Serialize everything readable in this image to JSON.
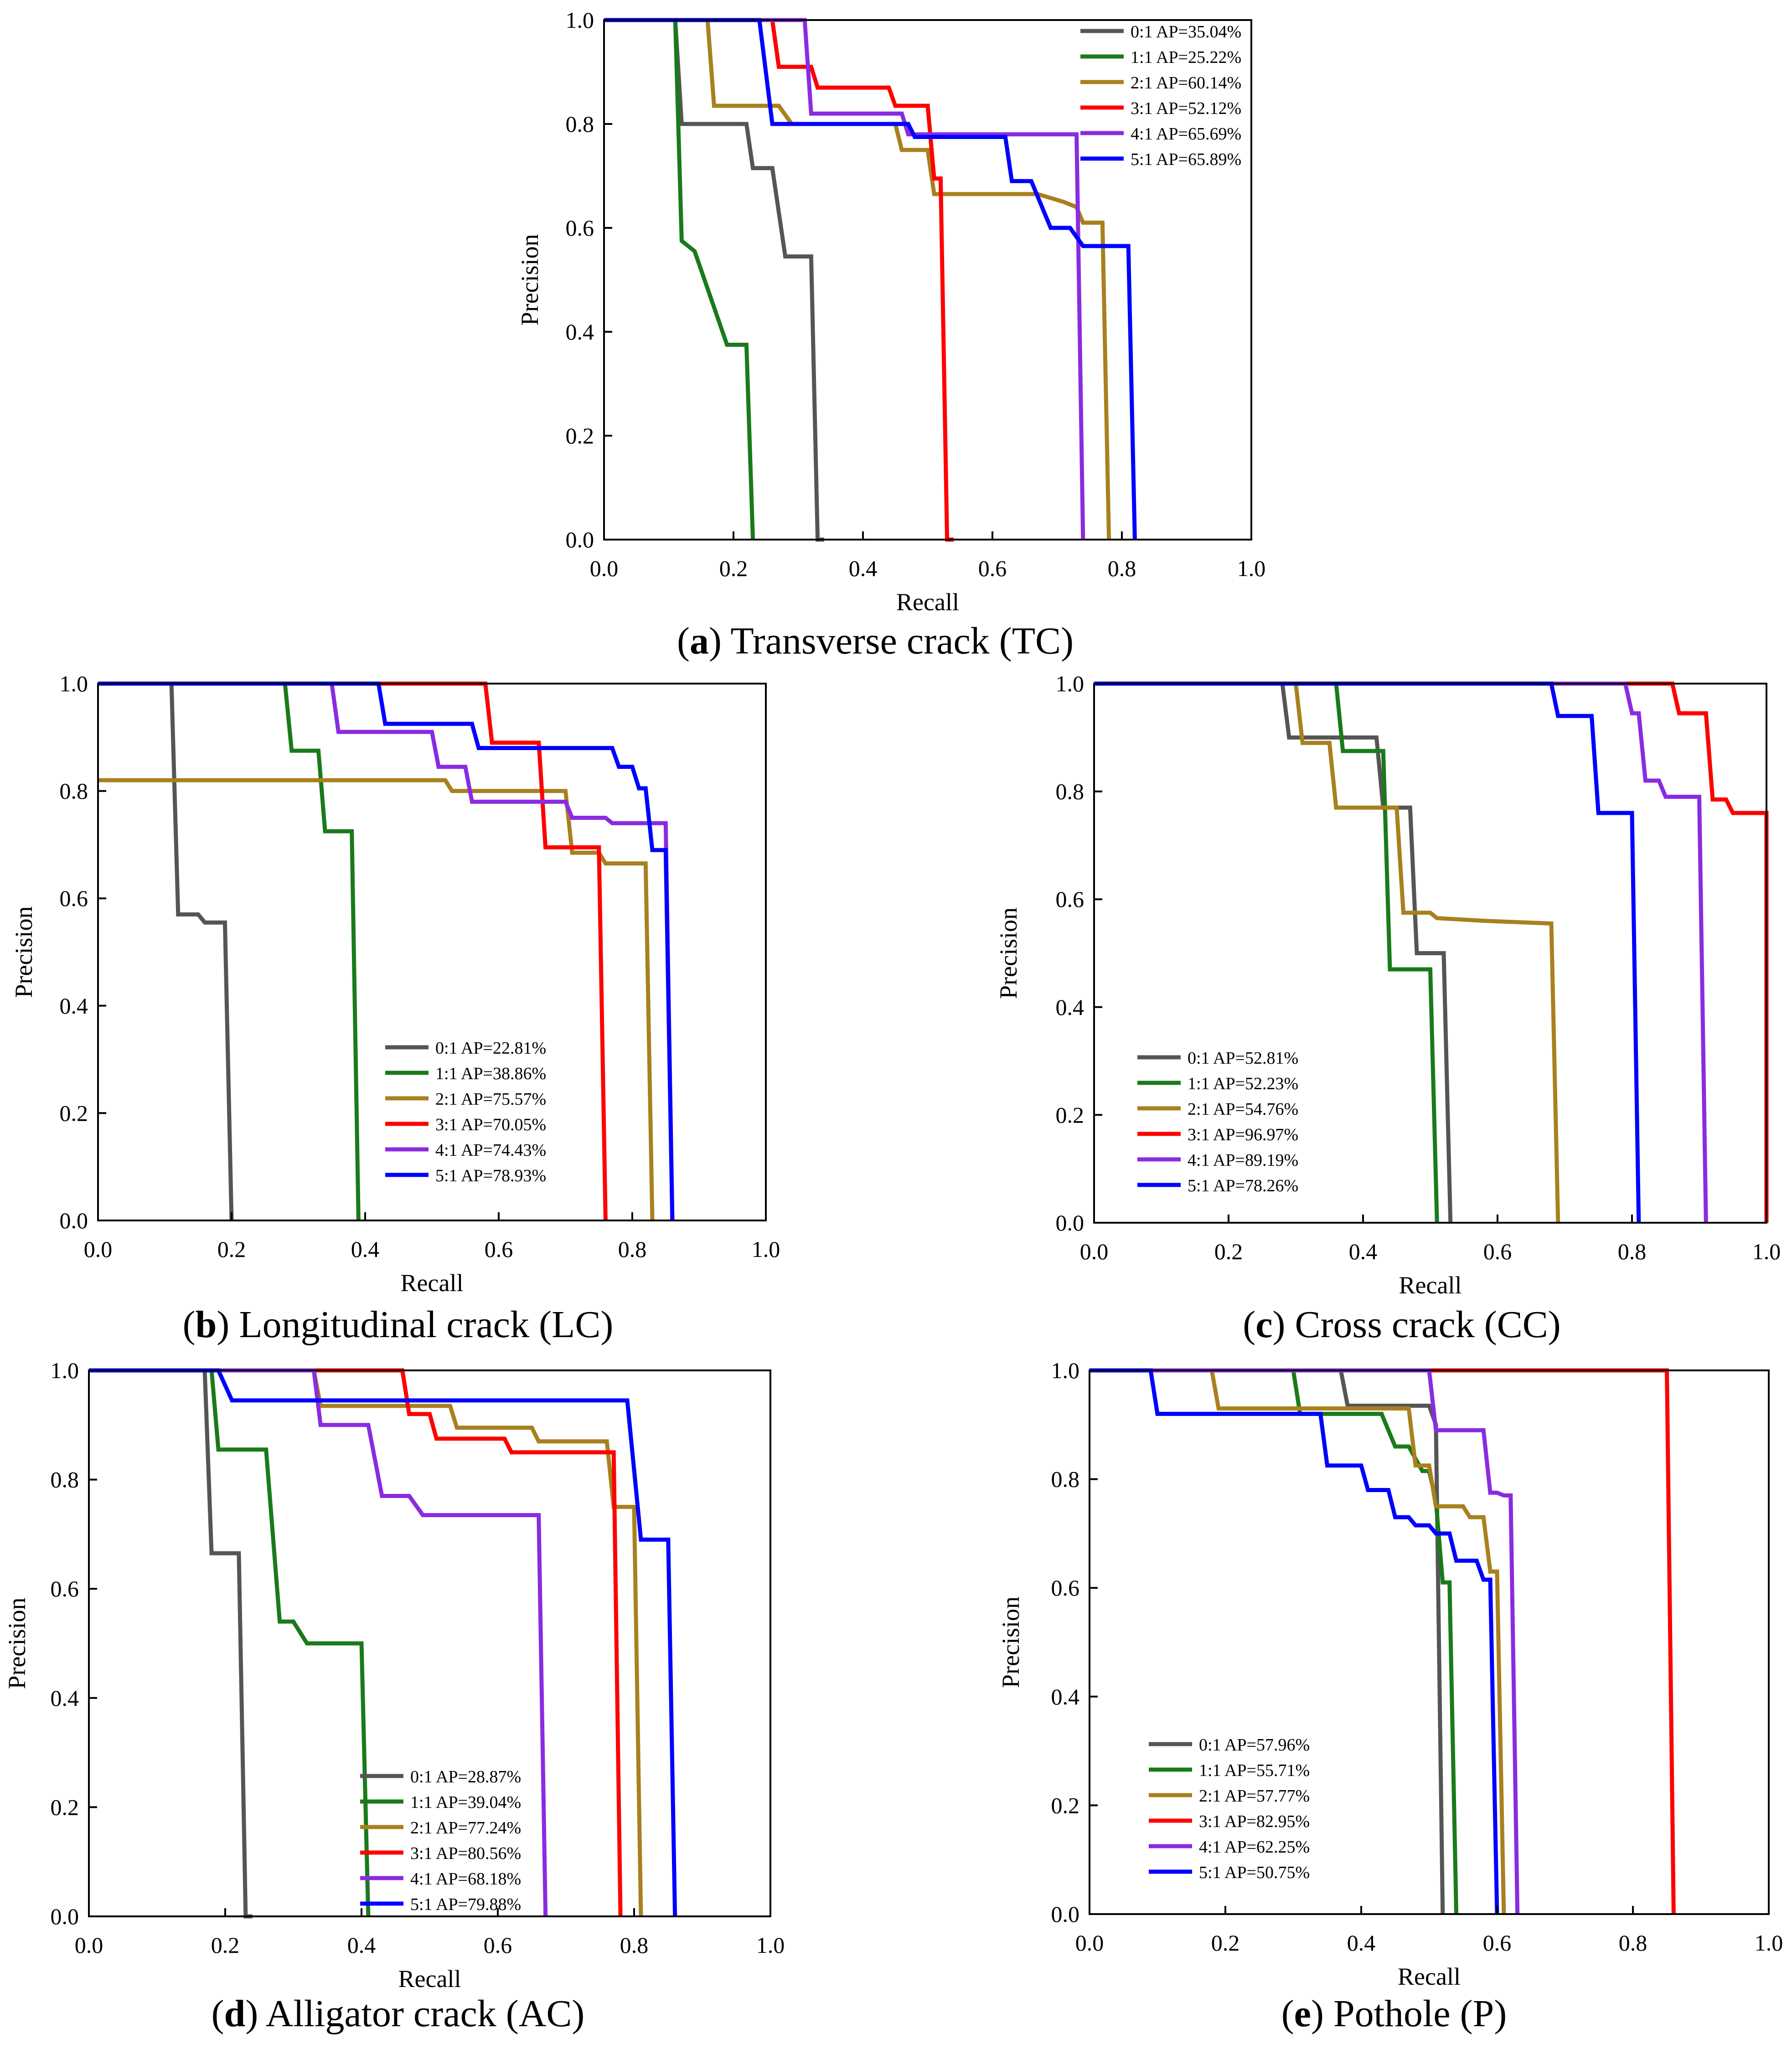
{
  "figure": {
    "series_colors": [
      "#555555",
      "#1a7a1a",
      "#a8801e",
      "#ff0000",
      "#8a2be2",
      "#0000ff"
    ],
    "x_axis_label": "Recall",
    "y_axis_label": "Precision"
  },
  "chart_data": [
    {
      "id": "a",
      "type": "line",
      "caption_letter": "a",
      "caption_text": " Transverse crack (TC)",
      "xlabel": "Recall",
      "ylabel": "Precision",
      "xlim": [
        0,
        1
      ],
      "ylim": [
        0,
        1
      ],
      "xticks": [
        "0.0",
        "0.2",
        "0.4",
        "0.6",
        "0.8",
        "1.0"
      ],
      "yticks": [
        "0.0",
        "0.2",
        "0.4",
        "0.6",
        "0.8",
        "1.0"
      ],
      "legend": "top-right",
      "series": [
        {
          "name": "0:1 AP=35.04%",
          "x": [
            0.0,
            0.11,
            0.12,
            0.22,
            0.23,
            0.26,
            0.28,
            0.32,
            0.33,
            0.34
          ],
          "y": [
            1.0,
            1.0,
            0.8,
            0.8,
            0.715,
            0.715,
            0.545,
            0.545,
            0.0,
            0.0
          ]
        },
        {
          "name": "1:1 AP=25.22%",
          "x": [
            0.0,
            0.11,
            0.12,
            0.14,
            0.19,
            0.22,
            0.23
          ],
          "y": [
            1.0,
            1.0,
            0.575,
            0.555,
            0.375,
            0.375,
            0.0
          ]
        },
        {
          "name": "2:1 AP=60.14%",
          "x": [
            0.0,
            0.16,
            0.17,
            0.27,
            0.29,
            0.45,
            0.46,
            0.5,
            0.51,
            0.67,
            0.71,
            0.73,
            0.74,
            0.77,
            0.78
          ],
          "y": [
            1.0,
            1.0,
            0.835,
            0.835,
            0.8,
            0.8,
            0.75,
            0.75,
            0.665,
            0.665,
            0.65,
            0.64,
            0.61,
            0.61,
            0.0
          ]
        },
        {
          "name": "3:1 AP=52.12%",
          "x": [
            0.0,
            0.26,
            0.27,
            0.32,
            0.33,
            0.44,
            0.45,
            0.5,
            0.51,
            0.52,
            0.53,
            0.54
          ],
          "y": [
            1.0,
            1.0,
            0.91,
            0.91,
            0.87,
            0.87,
            0.835,
            0.835,
            0.695,
            0.695,
            0.0,
            0.0
          ]
        },
        {
          "name": "4:1 AP=65.69%",
          "x": [
            0.0,
            0.31,
            0.32,
            0.46,
            0.47,
            0.73,
            0.74
          ],
          "y": [
            1.0,
            1.0,
            0.82,
            0.82,
            0.78,
            0.78,
            0.0
          ]
        },
        {
          "name": "5:1 AP=65.89%",
          "x": [
            0.0,
            0.24,
            0.26,
            0.47,
            0.48,
            0.62,
            0.63,
            0.66,
            0.69,
            0.72,
            0.74,
            0.81,
            0.82
          ],
          "y": [
            1.0,
            1.0,
            0.8,
            0.8,
            0.775,
            0.775,
            0.69,
            0.69,
            0.6,
            0.6,
            0.565,
            0.565,
            0.0
          ]
        }
      ]
    },
    {
      "id": "b",
      "type": "line",
      "caption_letter": "b",
      "caption_text": " Longitudinal crack (LC)",
      "xlabel": "Recall",
      "ylabel": "Precision",
      "xlim": [
        0,
        1
      ],
      "ylim": [
        0,
        1
      ],
      "xticks": [
        "0.0",
        "0.2",
        "0.4",
        "0.6",
        "0.8",
        "1.0"
      ],
      "yticks": [
        "0.0",
        "0.2",
        "0.4",
        "0.6",
        "0.8",
        "1.0"
      ],
      "legend": "bottom-center",
      "series": [
        {
          "name": "0:1 AP=22.81%",
          "x": [
            0.0,
            0.11,
            0.12,
            0.15,
            0.16,
            0.19,
            0.2
          ],
          "y": [
            1.0,
            1.0,
            0.57,
            0.57,
            0.555,
            0.555,
            0.0
          ]
        },
        {
          "name": "1:1 AP=38.86%",
          "x": [
            0.0,
            0.28,
            0.29,
            0.33,
            0.34,
            0.38,
            0.39
          ],
          "y": [
            1.0,
            1.0,
            0.875,
            0.875,
            0.725,
            0.725,
            0.0
          ]
        },
        {
          "name": "2:1 AP=75.57%",
          "x": [
            0.0,
            0.52,
            0.53,
            0.7,
            0.71,
            0.75,
            0.76,
            0.82,
            0.83
          ],
          "y": [
            0.82,
            0.82,
            0.8,
            0.8,
            0.685,
            0.685,
            0.665,
            0.665,
            0.0
          ]
        },
        {
          "name": "3:1 AP=70.05%",
          "x": [
            0.0,
            0.58,
            0.59,
            0.66,
            0.67,
            0.75,
            0.76
          ],
          "y": [
            1.0,
            1.0,
            0.89,
            0.89,
            0.695,
            0.695,
            0.0
          ]
        },
        {
          "name": "4:1 AP=74.43%",
          "x": [
            0.0,
            0.35,
            0.36,
            0.5,
            0.51,
            0.55,
            0.56,
            0.7,
            0.71,
            0.76,
            0.77,
            0.85,
            0.86
          ],
          "y": [
            1.0,
            1.0,
            0.91,
            0.91,
            0.845,
            0.845,
            0.78,
            0.78,
            0.75,
            0.75,
            0.74,
            0.74,
            0.0
          ]
        },
        {
          "name": "5:1 AP=78.93%",
          "x": [
            0.0,
            0.42,
            0.43,
            0.56,
            0.57,
            0.77,
            0.78,
            0.8,
            0.81,
            0.82,
            0.83,
            0.85,
            0.86
          ],
          "y": [
            1.0,
            1.0,
            0.925,
            0.925,
            0.88,
            0.88,
            0.845,
            0.845,
            0.805,
            0.805,
            0.69,
            0.69,
            0.0
          ]
        }
      ]
    },
    {
      "id": "c",
      "type": "line",
      "caption_letter": "c",
      "caption_text": " Cross crack (CC)",
      "xlabel": "Recall",
      "ylabel": "Precision",
      "xlim": [
        0,
        1
      ],
      "ylim": [
        0,
        1
      ],
      "xticks": [
        "0.0",
        "0.2",
        "0.4",
        "0.6",
        "0.8",
        "1.0"
      ],
      "yticks": [
        "0.0",
        "0.2",
        "0.4",
        "0.6",
        "0.8",
        "1.0"
      ],
      "legend": "bottom-left",
      "series": [
        {
          "name": "0:1 AP=52.81%",
          "x": [
            0.0,
            0.28,
            0.29,
            0.42,
            0.43,
            0.47,
            0.48,
            0.52,
            0.53
          ],
          "y": [
            1.0,
            1.0,
            0.9,
            0.9,
            0.77,
            0.77,
            0.5,
            0.5,
            0.0
          ]
        },
        {
          "name": "1:1 AP=52.23%",
          "x": [
            0.0,
            0.36,
            0.37,
            0.43,
            0.44,
            0.5,
            0.51
          ],
          "y": [
            1.0,
            1.0,
            0.875,
            0.875,
            0.47,
            0.47,
            0.0
          ]
        },
        {
          "name": "2:1 AP=54.76%",
          "x": [
            0.0,
            0.3,
            0.31,
            0.35,
            0.36,
            0.45,
            0.46,
            0.5,
            0.51,
            0.58,
            0.68,
            0.69
          ],
          "y": [
            1.0,
            1.0,
            0.89,
            0.89,
            0.77,
            0.77,
            0.575,
            0.575,
            0.565,
            0.56,
            0.555,
            0.0
          ]
        },
        {
          "name": "3:1 AP=96.97%",
          "x": [
            0.0,
            0.86,
            0.87,
            0.91,
            0.92,
            0.94,
            0.95,
            1.0,
            1.0
          ],
          "y": [
            1.0,
            1.0,
            0.945,
            0.945,
            0.785,
            0.785,
            0.76,
            0.76,
            0.0
          ]
        },
        {
          "name": "4:1 AP=89.19%",
          "x": [
            0.0,
            0.79,
            0.8,
            0.81,
            0.82,
            0.84,
            0.85,
            0.88,
            0.89,
            0.9,
            0.91
          ],
          "y": [
            1.0,
            1.0,
            0.945,
            0.945,
            0.82,
            0.82,
            0.79,
            0.79,
            0.79,
            0.79,
            0.0
          ]
        },
        {
          "name": "5:1 AP=78.26%",
          "x": [
            0.0,
            0.68,
            0.69,
            0.74,
            0.75,
            0.8,
            0.81
          ],
          "y": [
            1.0,
            1.0,
            0.94,
            0.94,
            0.76,
            0.76,
            0.0
          ]
        }
      ]
    },
    {
      "id": "d",
      "type": "line",
      "caption_letter": "d",
      "caption_text": " Alligator crack (AC)",
      "xlabel": "Recall",
      "ylabel": "Precision",
      "xlim": [
        0,
        1
      ],
      "ylim": [
        0,
        1
      ],
      "xticks": [
        "0.0",
        "0.2",
        "0.4",
        "0.6",
        "0.8",
        "1.0"
      ],
      "yticks": [
        "0.0",
        "0.2",
        "0.4",
        "0.6",
        "0.8",
        "1.0"
      ],
      "legend": "bottom-center",
      "series": [
        {
          "name": "0:1 AP=28.87%",
          "x": [
            0.0,
            0.17,
            0.18,
            0.22,
            0.23,
            0.24
          ],
          "y": [
            1.0,
            1.0,
            0.665,
            0.665,
            0.0,
            0.0
          ]
        },
        {
          "name": "1:1 AP=39.04%",
          "x": [
            0.0,
            0.18,
            0.19,
            0.26,
            0.28,
            0.3,
            0.32,
            0.4,
            0.41
          ],
          "y": [
            1.0,
            1.0,
            0.855,
            0.855,
            0.54,
            0.54,
            0.5,
            0.5,
            0.0
          ]
        },
        {
          "name": "2:1 AP=77.24%",
          "x": [
            0.0,
            0.33,
            0.34,
            0.53,
            0.54,
            0.65,
            0.66,
            0.76,
            0.77,
            0.8,
            0.81
          ],
          "y": [
            1.0,
            1.0,
            0.935,
            0.935,
            0.895,
            0.895,
            0.87,
            0.87,
            0.75,
            0.75,
            0.0
          ]
        },
        {
          "name": "3:1 AP=80.56%",
          "x": [
            0.0,
            0.46,
            0.47,
            0.5,
            0.51,
            0.61,
            0.62,
            0.77,
            0.78
          ],
          "y": [
            1.0,
            1.0,
            0.92,
            0.92,
            0.875,
            0.875,
            0.85,
            0.85,
            0.0
          ]
        },
        {
          "name": "4:1 AP=68.18%",
          "x": [
            0.0,
            0.33,
            0.34,
            0.41,
            0.43,
            0.47,
            0.49,
            0.66,
            0.67
          ],
          "y": [
            1.0,
            1.0,
            0.9,
            0.9,
            0.77,
            0.77,
            0.735,
            0.735,
            0.0
          ]
        },
        {
          "name": "5:1 AP=79.88%",
          "x": [
            0.0,
            0.19,
            0.21,
            0.79,
            0.81,
            0.85,
            0.86
          ],
          "y": [
            1.0,
            1.0,
            0.945,
            0.945,
            0.69,
            0.69,
            0.0
          ]
        }
      ]
    },
    {
      "id": "e",
      "type": "line",
      "caption_letter": "e",
      "caption_text": " Pothole (P)",
      "xlabel": "Recall",
      "ylabel": "Precision",
      "xlim": [
        0,
        1
      ],
      "ylim": [
        0,
        1
      ],
      "xticks": [
        "0.0",
        "0.2",
        "0.4",
        "0.6",
        "0.8",
        "1.0"
      ],
      "yticks": [
        "0.0",
        "0.2",
        "0.4",
        "0.6",
        "0.8",
        "1.0"
      ],
      "legend": "bottom-left",
      "series": [
        {
          "name": "0:1 AP=57.96%",
          "x": [
            0.0,
            0.37,
            0.38,
            0.5,
            0.51,
            0.52
          ],
          "y": [
            1.0,
            1.0,
            0.935,
            0.935,
            0.9,
            0.0
          ]
        },
        {
          "name": "1:1 AP=55.71%",
          "x": [
            0.0,
            0.3,
            0.31,
            0.43,
            0.45,
            0.47,
            0.49,
            0.5,
            0.51,
            0.52,
            0.53,
            0.54
          ],
          "y": [
            1.0,
            1.0,
            0.92,
            0.92,
            0.86,
            0.86,
            0.815,
            0.815,
            0.76,
            0.61,
            0.61,
            0.0
          ]
        },
        {
          "name": "2:1 AP=57.77%",
          "x": [
            0.0,
            0.18,
            0.19,
            0.47,
            0.48,
            0.5,
            0.51,
            0.55,
            0.56,
            0.58,
            0.59,
            0.6,
            0.61
          ],
          "y": [
            1.0,
            1.0,
            0.93,
            0.93,
            0.825,
            0.825,
            0.75,
            0.75,
            0.73,
            0.73,
            0.63,
            0.63,
            0.0
          ]
        },
        {
          "name": "3:1 AP=82.95%",
          "x": [
            0.0,
            0.85,
            0.86
          ],
          "y": [
            1.0,
            1.0,
            0.0
          ]
        },
        {
          "name": "4:1 AP=62.25%",
          "x": [
            0.0,
            0.5,
            0.51,
            0.58,
            0.59,
            0.6,
            0.61,
            0.62,
            0.63
          ],
          "y": [
            1.0,
            1.0,
            0.89,
            0.89,
            0.775,
            0.775,
            0.77,
            0.77,
            0.0
          ]
        },
        {
          "name": "5:1 AP=50.75%",
          "x": [
            0.0,
            0.09,
            0.1,
            0.34,
            0.35,
            0.4,
            0.41,
            0.44,
            0.45,
            0.47,
            0.48,
            0.5,
            0.51,
            0.53,
            0.54,
            0.57,
            0.58,
            0.59,
            0.6
          ],
          "y": [
            1.0,
            1.0,
            0.92,
            0.92,
            0.825,
            0.825,
            0.78,
            0.78,
            0.73,
            0.73,
            0.715,
            0.715,
            0.7,
            0.7,
            0.65,
            0.65,
            0.615,
            0.615,
            0.0
          ]
        }
      ]
    }
  ]
}
